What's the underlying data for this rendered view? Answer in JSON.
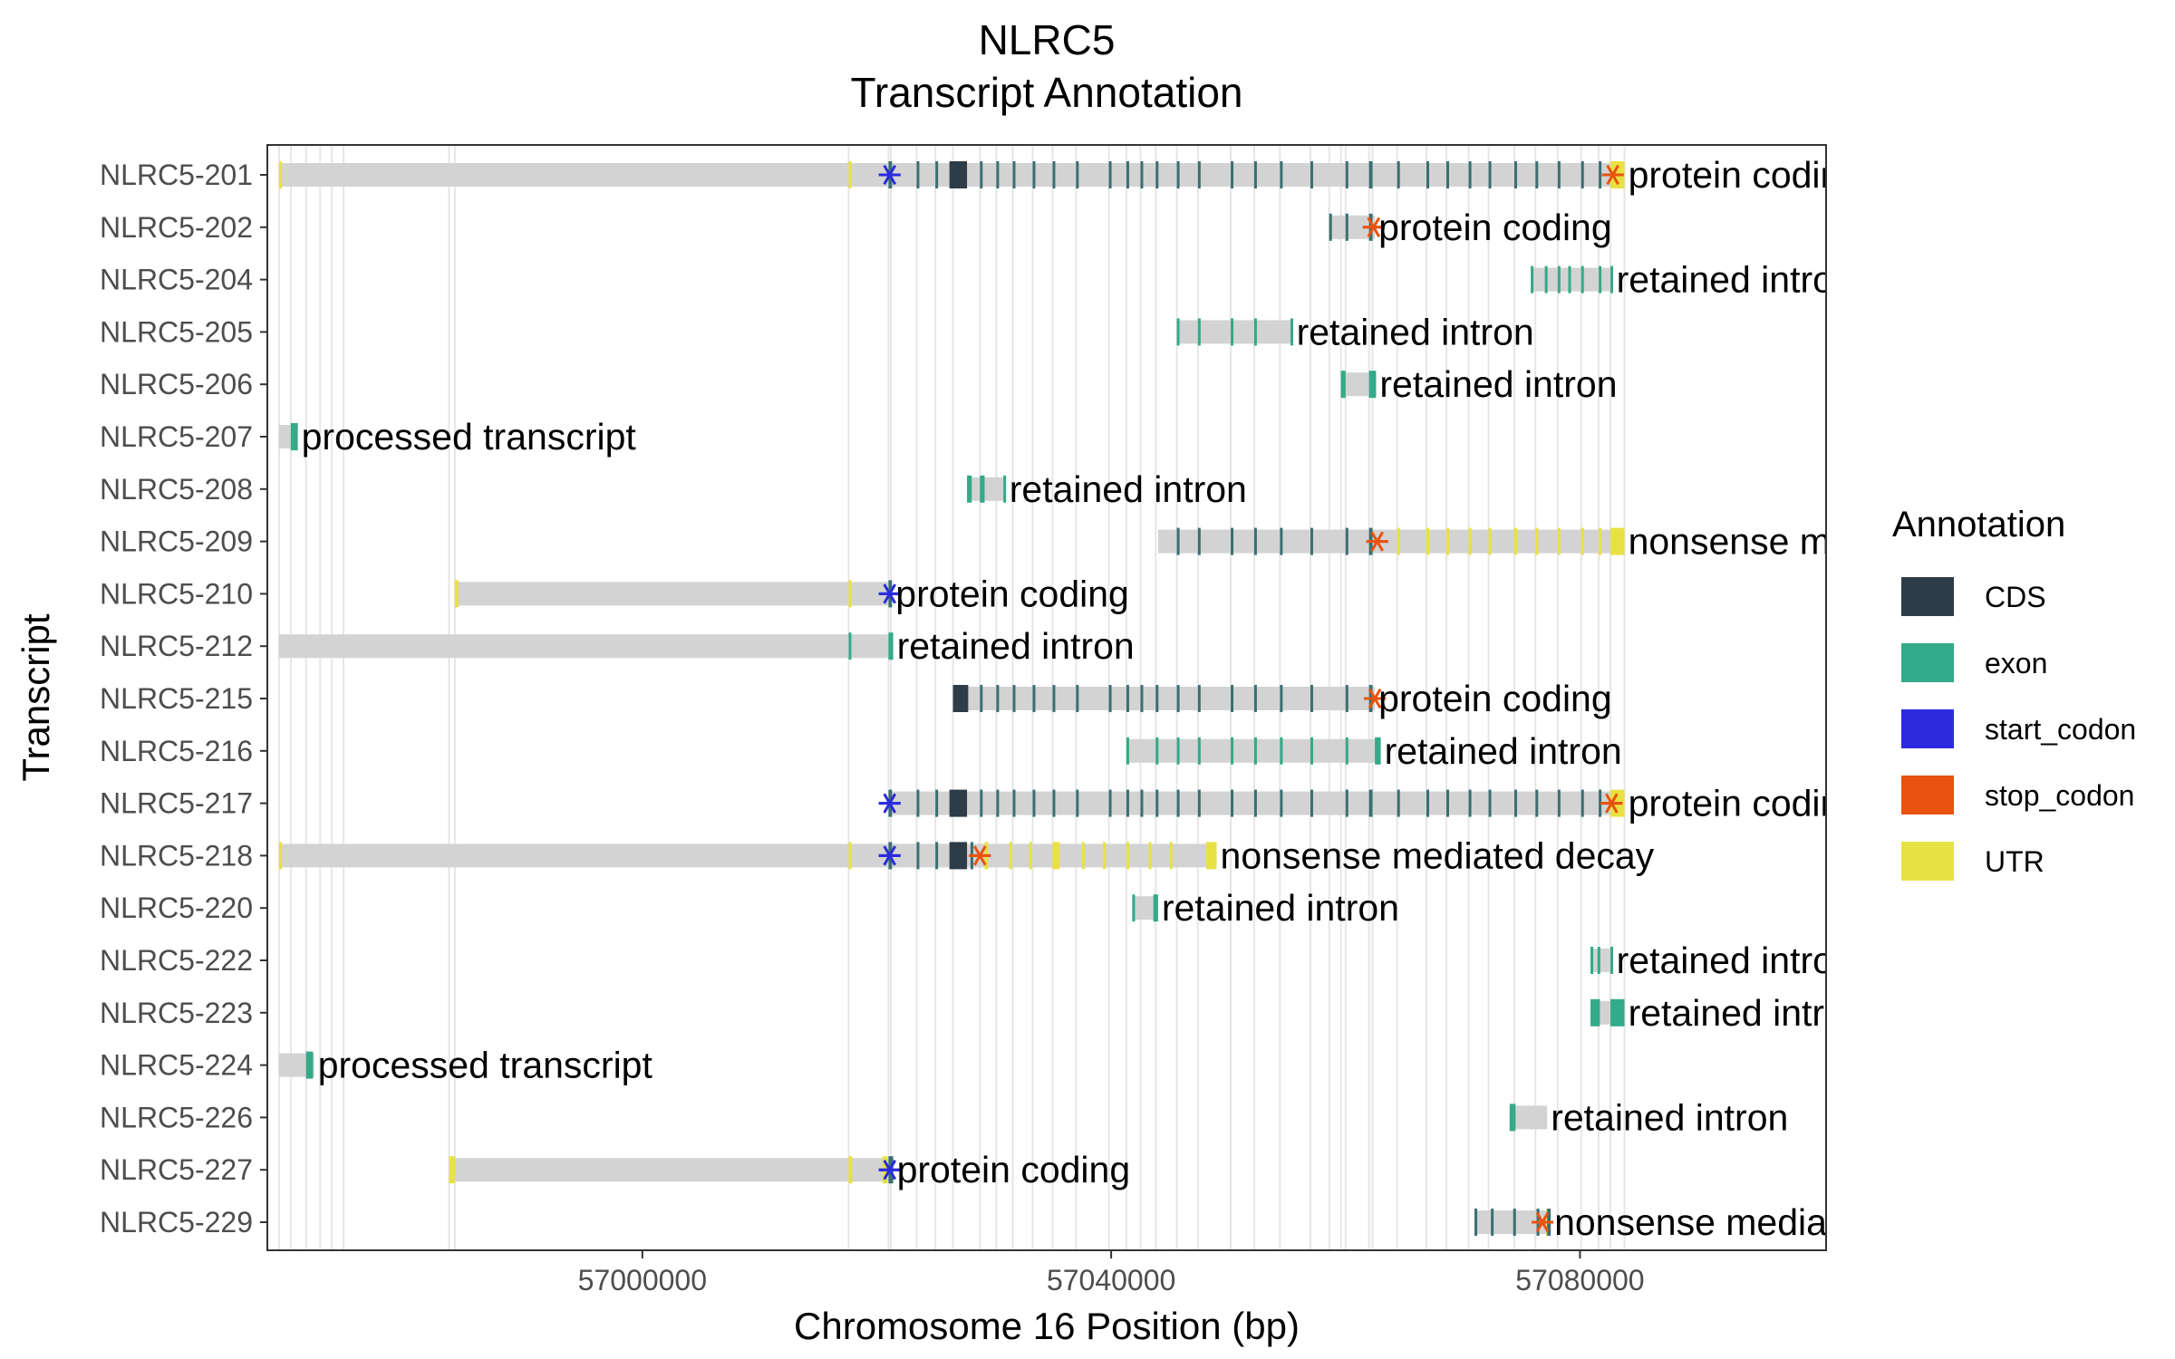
{
  "chart_data": {
    "type": "gene-track",
    "title_line1": "NLRC5",
    "title_line2": "Transcript Annotation",
    "xlabel": "Chromosome 16 Position (bp)",
    "ylabel": "Transcript",
    "xlim": [
      56968000,
      57101000
    ],
    "x_ticks": [
      57000000,
      57040000,
      57080000
    ],
    "x_tick_labels": [
      "57000000",
      "57040000",
      "57080000"
    ],
    "colors": {
      "intron": "#d3d3d3",
      "guide": "#e6e6e6",
      "CDS": "#2e3c47",
      "exon": "#33aa88",
      "start_codon": "#2b2bdd",
      "stop_codon": "#e8530f",
      "UTR": "#e8e143"
    },
    "legend": {
      "title": "Annotation",
      "items": [
        {
          "key": "CDS",
          "label": "CDS"
        },
        {
          "key": "exon",
          "label": "exon"
        },
        {
          "key": "start_codon",
          "label": "start_codon"
        },
        {
          "key": "stop_codon",
          "label": "stop_codon"
        },
        {
          "key": "UTR",
          "label": "UTR"
        }
      ]
    },
    "transcripts": [
      {
        "name": "NLRC5-229",
        "biotype": "nonsense mediated decay",
        "start": 57071000,
        "end": 57077500,
        "exons": [
          [
            57071000,
            57071200
          ],
          [
            57072400,
            57072600
          ],
          [
            57074300,
            57074500
          ],
          [
            57076300,
            57076500
          ],
          [
            57077200,
            57077500
          ]
        ],
        "utr": [
          [
            57077100,
            57077500
          ]
        ],
        "start_codon": null,
        "stop_codon": 57076800
      },
      {
        "name": "NLRC5-227",
        "biotype": "protein coding",
        "start": 56983500,
        "end": 57021400,
        "exons": [
          [
            57021000,
            57021400
          ]
        ],
        "utr": [
          [
            56983500,
            56984000
          ],
          [
            57017600,
            57017900
          ],
          [
            57020500,
            57020900
          ]
        ],
        "start_codon": 57021100,
        "stop_codon": null
      },
      {
        "name": "NLRC5-226",
        "biotype": "retained intron",
        "start": 57074000,
        "end": 57077200,
        "exons": [
          [
            57074000,
            57074500
          ]
        ],
        "utr": [],
        "start_codon": null,
        "stop_codon": null
      },
      {
        "name": "NLRC5-224",
        "biotype": "processed transcript",
        "start": 56969000,
        "end": 56972000,
        "exons": [
          [
            56971300,
            56971900
          ]
        ],
        "utr": [],
        "start_codon": null,
        "stop_codon": null
      },
      {
        "name": "NLRC5-223",
        "biotype": "retained intron",
        "start": 57080900,
        "end": 57083800,
        "exons": [
          [
            57080900,
            57081700
          ],
          [
            57082600,
            57083800
          ]
        ],
        "utr": [],
        "start_codon": null,
        "stop_codon": null
      },
      {
        "name": "NLRC5-222",
        "biotype": "retained intron",
        "start": 57080900,
        "end": 57082800,
        "exons": [
          [
            57080900,
            57081100
          ],
          [
            57081500,
            57081700
          ],
          [
            57082600,
            57082800
          ]
        ],
        "utr": [],
        "start_codon": null,
        "stop_codon": null
      },
      {
        "name": "NLRC5-220",
        "biotype": "retained intron",
        "start": 57041800,
        "end": 57044000,
        "exons": [
          [
            57041800,
            57042000
          ],
          [
            57043600,
            57044000
          ]
        ],
        "utr": [],
        "start_codon": null,
        "stop_codon": null
      },
      {
        "name": "NLRC5-218",
        "biotype": "nonsense mediated decay",
        "start": 56969000,
        "end": 57049000,
        "exons": [
          [
            57021000,
            57021300
          ],
          [
            57023400,
            57023600
          ],
          [
            57025000,
            57025200
          ],
          [
            57026200,
            57027700
          ],
          [
            57028000,
            57028200
          ]
        ],
        "utr": [
          [
            56969000,
            56969200
          ],
          [
            57017600,
            57017800
          ],
          [
            57029200,
            57029500
          ],
          [
            57031300,
            57031500
          ],
          [
            57033000,
            57033200
          ],
          [
            57035000,
            57035600
          ],
          [
            57037500,
            57037700
          ],
          [
            57039300,
            57039500
          ],
          [
            57041300,
            57041500
          ],
          [
            57043200,
            57043400
          ],
          [
            57045000,
            57045200
          ],
          [
            57048100,
            57049000
          ]
        ],
        "start_codon": 57021100,
        "stop_codon": 57028800
      },
      {
        "name": "NLRC5-217",
        "biotype": "protein coding",
        "start": 57021000,
        "end": 57083800,
        "exons": [
          [
            57021000,
            57021300
          ],
          [
            57023400,
            57023600
          ],
          [
            57025000,
            57025200
          ],
          [
            57026200,
            57027700
          ],
          [
            57028800,
            57029000
          ],
          [
            57030200,
            57030400
          ],
          [
            57031600,
            57031800
          ],
          [
            57033300,
            57033500
          ],
          [
            57035000,
            57035200
          ],
          [
            57037000,
            57037200
          ],
          [
            57039800,
            57040000
          ],
          [
            57041300,
            57041500
          ],
          [
            57042500,
            57042700
          ],
          [
            57043800,
            57044000
          ],
          [
            57045600,
            57045800
          ],
          [
            57047400,
            57047600
          ],
          [
            57050200,
            57050400
          ],
          [
            57052200,
            57052400
          ],
          [
            57054400,
            57054600
          ],
          [
            57057000,
            57057200
          ],
          [
            57060000,
            57060200
          ],
          [
            57062000,
            57062300
          ],
          [
            57064400,
            57064600
          ],
          [
            57066900,
            57067100
          ],
          [
            57068600,
            57068800
          ],
          [
            57070500,
            57070700
          ],
          [
            57072200,
            57072400
          ],
          [
            57074400,
            57074600
          ],
          [
            57076200,
            57076400
          ],
          [
            57078100,
            57078300
          ],
          [
            57080100,
            57080300
          ],
          [
            57081600,
            57081800
          ]
        ],
        "utr": [
          [
            57082600,
            57083800
          ]
        ],
        "start_codon": 57021100,
        "stop_codon": 57082700
      },
      {
        "name": "NLRC5-216",
        "biotype": "retained intron",
        "start": 57041300,
        "end": 57063000,
        "exons": [
          [
            57041300,
            57041500
          ],
          [
            57043800,
            57044000
          ],
          [
            57045600,
            57045800
          ],
          [
            57047400,
            57047600
          ],
          [
            57050200,
            57050400
          ],
          [
            57052200,
            57052400
          ],
          [
            57054400,
            57054600
          ],
          [
            57057000,
            57057200
          ],
          [
            57060000,
            57060200
          ],
          [
            57062500,
            57063000
          ]
        ],
        "utr": [],
        "start_codon": null,
        "stop_codon": null
      },
      {
        "name": "NLRC5-215",
        "biotype": "protein coding",
        "start": 57026500,
        "end": 57062500,
        "exons": [
          [
            57026500,
            57027800
          ],
          [
            57028800,
            57029000
          ],
          [
            57030200,
            57030400
          ],
          [
            57031600,
            57031800
          ],
          [
            57033300,
            57033500
          ],
          [
            57035000,
            57035200
          ],
          [
            57037000,
            57037200
          ],
          [
            57039800,
            57040000
          ],
          [
            57041300,
            57041500
          ],
          [
            57042500,
            57042700
          ],
          [
            57043800,
            57044000
          ],
          [
            57045600,
            57045800
          ],
          [
            57047400,
            57047600
          ],
          [
            57050200,
            57050400
          ],
          [
            57052200,
            57052400
          ],
          [
            57054400,
            57054600
          ],
          [
            57057000,
            57057200
          ],
          [
            57060000,
            57060200
          ],
          [
            57062000,
            57062300
          ]
        ],
        "utr": [],
        "start_codon": null,
        "stop_codon": 57062500
      },
      {
        "name": "NLRC5-212",
        "biotype": "retained intron",
        "start": 56969000,
        "end": 57021400,
        "exons": [
          [
            57017600,
            57017800
          ],
          [
            57021000,
            57021400
          ]
        ],
        "utr": [],
        "start_codon": null,
        "stop_codon": null
      },
      {
        "name": "NLRC5-210",
        "biotype": "protein coding",
        "start": 56984000,
        "end": 57021300,
        "exons": [
          [
            57021000,
            57021300
          ]
        ],
        "utr": [
          [
            56984000,
            56984300
          ],
          [
            57017600,
            57017800
          ]
        ],
        "start_codon": 57021100,
        "stop_codon": null
      },
      {
        "name": "NLRC5-209",
        "biotype": "nonsense mediated decay",
        "start": 57044000,
        "end": 57083800,
        "exons": [
          [
            57045600,
            57045800
          ],
          [
            57047400,
            57047600
          ],
          [
            57050200,
            57050400
          ],
          [
            57052200,
            57052400
          ],
          [
            57054400,
            57054600
          ],
          [
            57057000,
            57057200
          ],
          [
            57060000,
            57060200
          ],
          [
            57062000,
            57062300
          ]
        ],
        "utr": [
          [
            57064400,
            57064600
          ],
          [
            57066900,
            57067100
          ],
          [
            57068600,
            57068800
          ],
          [
            57070500,
            57070700
          ],
          [
            57072200,
            57072400
          ],
          [
            57074400,
            57074600
          ],
          [
            57076200,
            57076400
          ],
          [
            57078100,
            57078300
          ],
          [
            57080100,
            57080300
          ],
          [
            57081600,
            57081800
          ],
          [
            57082600,
            57083800
          ]
        ],
        "start_codon": null,
        "stop_codon": 57062700
      },
      {
        "name": "NLRC5-208",
        "biotype": "retained intron",
        "start": 57027700,
        "end": 57031000,
        "exons": [
          [
            57027700,
            57028100
          ],
          [
            57028800,
            57029200
          ],
          [
            57030800,
            57031000
          ]
        ],
        "utr": [],
        "start_codon": null,
        "stop_codon": null
      },
      {
        "name": "NLRC5-207",
        "biotype": "processed transcript",
        "start": 56969000,
        "end": 56970600,
        "exons": [
          [
            56970000,
            56970600
          ]
        ],
        "utr": [],
        "start_codon": null,
        "stop_codon": null
      },
      {
        "name": "NLRC5-206",
        "biotype": "retained intron",
        "start": 57059600,
        "end": 57062600,
        "exons": [
          [
            57059600,
            57060000
          ],
          [
            57062000,
            57062600
          ]
        ],
        "utr": [],
        "start_codon": null,
        "stop_codon": null
      },
      {
        "name": "NLRC5-205",
        "biotype": "retained intron",
        "start": 57045600,
        "end": 57055500,
        "exons": [
          [
            57045600,
            57045800
          ],
          [
            57047400,
            57047600
          ],
          [
            57050200,
            57050400
          ],
          [
            57052200,
            57052400
          ],
          [
            57055300,
            57055500
          ]
        ],
        "utr": [],
        "start_codon": null,
        "stop_codon": null
      },
      {
        "name": "NLRC5-204",
        "biotype": "retained intron",
        "start": 57075800,
        "end": 57082800,
        "exons": [
          [
            57075800,
            57076000
          ],
          [
            57077000,
            57077200
          ],
          [
            57078100,
            57078300
          ],
          [
            57079000,
            57079200
          ],
          [
            57080100,
            57080300
          ],
          [
            57081600,
            57081800
          ],
          [
            57082600,
            57082800
          ]
        ],
        "utr": [],
        "start_codon": null,
        "stop_codon": null
      },
      {
        "name": "NLRC5-202",
        "biotype": "protein coding",
        "start": 57058600,
        "end": 57062500,
        "exons": [
          [
            57058600,
            57058800
          ],
          [
            57060000,
            57060200
          ],
          [
            57062000,
            57062300
          ]
        ],
        "utr": [],
        "start_codon": null,
        "stop_codon": 57062400
      },
      {
        "name": "NLRC5-201",
        "biotype": "protein coding",
        "start": 56969000,
        "end": 57083800,
        "exons": [
          [
            57021000,
            57021300
          ],
          [
            57023400,
            57023600
          ],
          [
            57025000,
            57025200
          ],
          [
            57026200,
            57027700
          ],
          [
            57028800,
            57029000
          ],
          [
            57030200,
            57030400
          ],
          [
            57031600,
            57031800
          ],
          [
            57033300,
            57033500
          ],
          [
            57035000,
            57035200
          ],
          [
            57037000,
            57037200
          ],
          [
            57039800,
            57040000
          ],
          [
            57041300,
            57041500
          ],
          [
            57042500,
            57042700
          ],
          [
            57043800,
            57044000
          ],
          [
            57045600,
            57045800
          ],
          [
            57047400,
            57047600
          ],
          [
            57050200,
            57050400
          ],
          [
            57052200,
            57052400
          ],
          [
            57054400,
            57054600
          ],
          [
            57057000,
            57057200
          ],
          [
            57060000,
            57060200
          ],
          [
            57062000,
            57062300
          ],
          [
            57064400,
            57064600
          ],
          [
            57066900,
            57067100
          ],
          [
            57068600,
            57068800
          ],
          [
            57070500,
            57070700
          ],
          [
            57072200,
            57072400
          ],
          [
            57074400,
            57074600
          ],
          [
            57076200,
            57076400
          ],
          [
            57078100,
            57078300
          ],
          [
            57080100,
            57080300
          ],
          [
            57081600,
            57081800
          ]
        ],
        "utr": [
          [
            56969000,
            56969200
          ],
          [
            57017600,
            57017800
          ],
          [
            57082600,
            57083800
          ]
        ],
        "start_codon": 57021100,
        "stop_codon": 57082800
      }
    ],
    "guide_positions": [
      56969000,
      56970000,
      56971300,
      56972500,
      56973500,
      56974500,
      56983500,
      56984000,
      57017600,
      57021000,
      57021200,
      57023400,
      57025000,
      57026500,
      57028800,
      57030200,
      57031600,
      57033300,
      57035000,
      57037000,
      57039800,
      57041300,
      57042500,
      57043800,
      57045600,
      57047400,
      57050200,
      57052200,
      57054400,
      57057000,
      57058600,
      57059600,
      57060000,
      57062000,
      57062300,
      57064400,
      57066900,
      57068600,
      57070500,
      57072200,
      57074400,
      57076200,
      57078100,
      57080100,
      57081600,
      57082600,
      57083800
    ]
  }
}
